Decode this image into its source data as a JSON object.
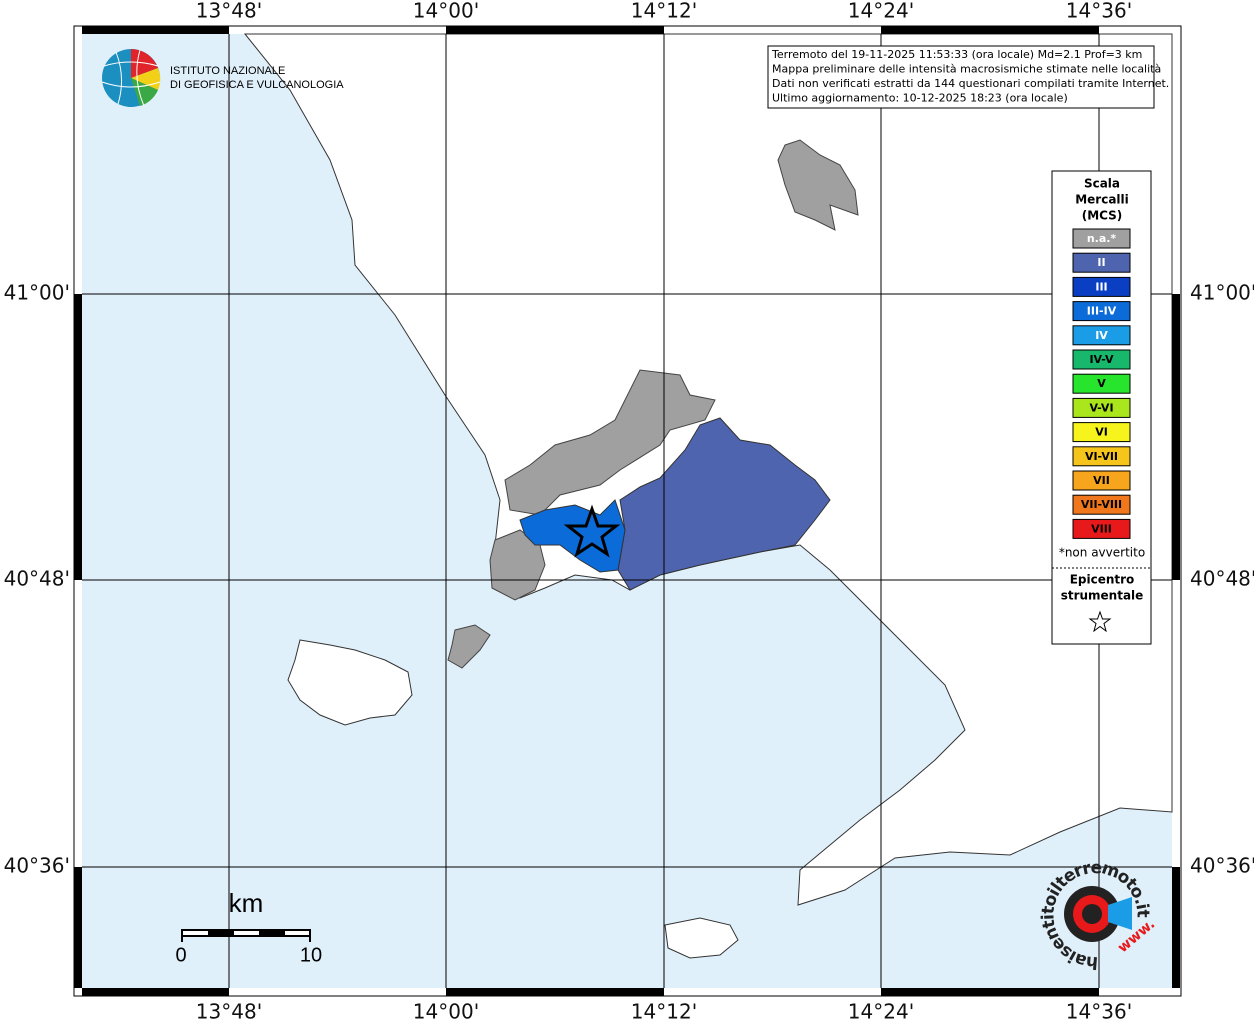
{
  "info_box": {
    "lines": [
      "Terremoto del 19-11-2025 11:53:33 (ora locale) Md=2.1 Prof=3 km",
      "Mappa preliminare delle intensità macrosismiche stimate nelle località",
      "Dati non verificati estratti da 144 questionari compilati tramite Internet.",
      "Ultimo aggiornamento: 10-12-2025 18:23 (ora locale)"
    ]
  },
  "logo": {
    "lines": [
      "ISTITUTO NAZIONALE",
      "DI GEOFISICA E VULCANOLOGIA"
    ]
  },
  "axes": {
    "longitude_labels": [
      "13°48'",
      "14°00'",
      "14°12'",
      "14°24'",
      "14°36'"
    ],
    "latitude_labels": [
      "41°00'",
      "40°48'",
      "40°36'"
    ]
  },
  "legend": {
    "title_lines": [
      "Scala",
      "Mercalli",
      "(MCS)"
    ],
    "items": [
      {
        "label": "n.a.*",
        "color": "#a0a0a0"
      },
      {
        "label": "II",
        "color": "#4f64ae"
      },
      {
        "label": "III",
        "color": "#0a3fc4"
      },
      {
        "label": "III-IV",
        "color": "#0b6bd8"
      },
      {
        "label": "IV",
        "color": "#1a9de6"
      },
      {
        "label": "IV-V",
        "color": "#17b86c"
      },
      {
        "label": "V",
        "color": "#26e52c"
      },
      {
        "label": "V-VI",
        "color": "#a9e61b"
      },
      {
        "label": "VI",
        "color": "#f6f41c"
      },
      {
        "label": "VI-VII",
        "color": "#f6c51c"
      },
      {
        "label": "VII",
        "color": "#f6a51c"
      },
      {
        "label": "VII-VIII",
        "color": "#f0771b"
      },
      {
        "label": "VIII",
        "color": "#e8191b"
      }
    ],
    "footnote": "*non avvertito",
    "epicenter_lines": [
      "Epicentro",
      "strumentale"
    ]
  },
  "scale_bar": {
    "unit": "km",
    "labels": [
      "0",
      "10"
    ]
  },
  "watermark": {
    "text": "haisentitoilterremoto.it",
    "prefix": "www."
  }
}
